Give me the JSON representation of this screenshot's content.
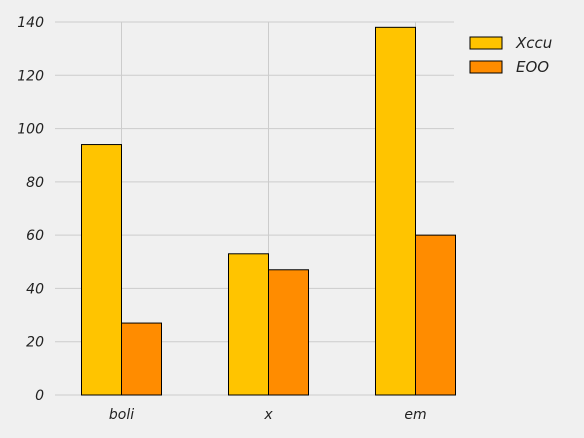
{
  "chart_data": {
    "type": "bar",
    "categories": [
      "boli",
      "x",
      "em"
    ],
    "series": [
      {
        "name": "Xccu",
        "values": [
          94,
          53,
          138
        ],
        "color": "#ffc400"
      },
      {
        "name": "EOO",
        "values": [
          27,
          47,
          60
        ],
        "color": "#ff8c00"
      }
    ],
    "title": "",
    "xlabel": "",
    "ylabel": "",
    "ylim": [
      0,
      140
    ],
    "yticks": [
      0,
      20,
      40,
      60,
      80,
      100,
      120,
      140
    ],
    "grid": true,
    "legend": "top-right",
    "background_color": "#f0f0f0",
    "grid_color": "#cccccc",
    "bar_edge_color": "#000000"
  }
}
